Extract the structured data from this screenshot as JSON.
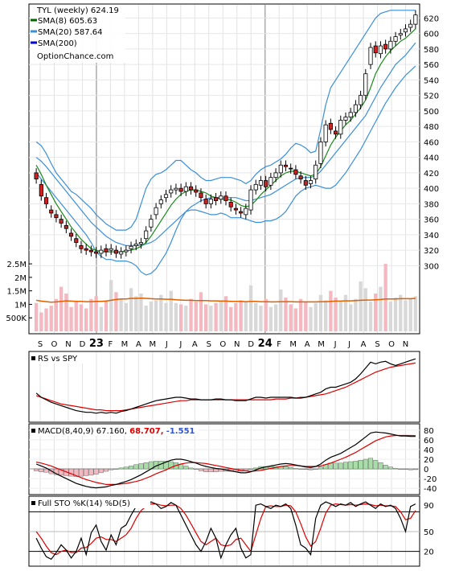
{
  "header": {
    "title": "TYL (weekly) 624.19",
    "legend": [
      {
        "label": "SMA(8) 605.63",
        "color": "#006400"
      },
      {
        "label": "SMA(20) 587.64",
        "color": "#3b8fd9"
      },
      {
        "label": "SMA(200)",
        "color": "#0000cc"
      }
    ],
    "source": "OptionChance.com"
  },
  "colors": {
    "up_candle": "#ffff66",
    "down_candle": "#cc2222",
    "bollinger": "#3b8fd9",
    "sma8": "#1a8a1a",
    "volume_up": "#d8d8d8",
    "volume_down": "#f4b8c0",
    "volume_avg": "#e06000",
    "rs_line": "#000000",
    "rs_avg": "#dd0000",
    "macd_hist_up": "#a8dca8",
    "macd_hist_down": "#f4b8c0"
  },
  "chart_data": {
    "type": "candlestick",
    "title": "TYL (weekly) 624.19",
    "x_ticks": [
      "S",
      "O",
      "N",
      "D",
      "23",
      "F",
      "M",
      "A",
      "M",
      "J",
      "J",
      "A",
      "S",
      "O",
      "N",
      "D",
      "24",
      "F",
      "M",
      "A",
      "M",
      "J",
      "J",
      "A",
      "S",
      "O",
      "N"
    ],
    "price": {
      "ylim": [
        290,
        635
      ],
      "yticks": [
        300,
        320,
        340,
        360,
        380,
        400,
        420,
        440,
        460,
        480,
        500,
        520,
        540,
        560,
        580,
        600,
        620
      ],
      "close": [
        412,
        390,
        380,
        368,
        362,
        355,
        348,
        338,
        330,
        322,
        320,
        318,
        316,
        320,
        318,
        322,
        316,
        318,
        320,
        325,
        328,
        330,
        345,
        360,
        375,
        385,
        392,
        398,
        400,
        396,
        402,
        398,
        395,
        388,
        380,
        386,
        384,
        390,
        384,
        376,
        372,
        368,
        374,
        398,
        405,
        410,
        402,
        414,
        420,
        430,
        428,
        425,
        418,
        412,
        404,
        410,
        430,
        460,
        482,
        476,
        470,
        488,
        492,
        498,
        508,
        520,
        548,
        582,
        575,
        584,
        580,
        590,
        596,
        600,
        606,
        612,
        624
      ],
      "open": [
        420,
        405,
        388,
        372,
        366,
        360,
        352,
        342,
        335,
        326,
        322,
        320,
        318,
        316,
        322,
        320,
        320,
        315,
        318,
        322,
        326,
        328,
        335,
        350,
        366,
        380,
        388,
        394,
        398,
        400,
        396,
        402,
        398,
        394,
        386,
        380,
        388,
        386,
        390,
        382,
        374,
        370,
        366,
        372,
        398,
        404,
        410,
        404,
        414,
        420,
        430,
        426,
        424,
        416,
        410,
        406,
        412,
        432,
        460,
        484,
        474,
        470,
        488,
        492,
        498,
        508,
        520,
        560,
        584,
        574,
        586,
        580,
        590,
        598,
        602,
        608,
        612
      ],
      "sma8": [
        430,
        418,
        404,
        392,
        380,
        370,
        360,
        350,
        342,
        334,
        328,
        322,
        320,
        318,
        318,
        318,
        318,
        318,
        319,
        320,
        322,
        325,
        330,
        338,
        348,
        358,
        368,
        378,
        386,
        392,
        396,
        398,
        398,
        396,
        394,
        390,
        388,
        386,
        386,
        385,
        382,
        378,
        376,
        378,
        384,
        392,
        398,
        404,
        410,
        416,
        420,
        422,
        422,
        420,
        418,
        416,
        418,
        428,
        442,
        456,
        466,
        474,
        482,
        488,
        496,
        504,
        514,
        530,
        548,
        560,
        570,
        578,
        584,
        590,
        594,
        600,
        606
      ],
      "sma20": [
        440,
        435,
        428,
        420,
        412,
        404,
        396,
        388,
        380,
        372,
        364,
        356,
        350,
        344,
        338,
        334,
        330,
        328,
        326,
        326,
        326,
        326,
        328,
        330,
        334,
        340,
        346,
        352,
        358,
        364,
        370,
        376,
        380,
        384,
        386,
        388,
        388,
        388,
        388,
        388,
        388,
        386,
        384,
        384,
        386,
        388,
        390,
        392,
        396,
        400,
        404,
        408,
        412,
        414,
        414,
        414,
        416,
        422,
        430,
        438,
        446,
        454,
        462,
        470,
        478,
        486,
        494,
        506,
        518,
        530,
        540,
        550,
        560,
        566,
        572,
        580,
        588
      ],
      "boll_upper": [
        460,
        455,
        445,
        432,
        420,
        412,
        404,
        396,
        392,
        386,
        380,
        374,
        366,
        360,
        354,
        350,
        346,
        346,
        346,
        350,
        360,
        380,
        400,
        412,
        418,
        420,
        424,
        430,
        436,
        436,
        430,
        424,
        420,
        414,
        410,
        410,
        412,
        414,
        414,
        414,
        412,
        410,
        406,
        410,
        418,
        424,
        428,
        430,
        434,
        438,
        444,
        452,
        458,
        456,
        452,
        446,
        448,
        476,
        508,
        530,
        540,
        550,
        560,
        570,
        580,
        590,
        600,
        610,
        620,
        626,
        628,
        630,
        630,
        630,
        630,
        630,
        630
      ],
      "boll_lower": [
        420,
        412,
        404,
        396,
        388,
        380,
        372,
        364,
        356,
        348,
        340,
        330,
        318,
        312,
        308,
        308,
        306,
        306,
        306,
        304,
        300,
        292,
        288,
        290,
        296,
        306,
        316,
        330,
        346,
        360,
        370,
        372,
        372,
        370,
        368,
        366,
        366,
        368,
        366,
        362,
        362,
        362,
        360,
        358,
        356,
        356,
        358,
        358,
        360,
        364,
        370,
        380,
        390,
        396,
        400,
        402,
        404,
        402,
        400,
        400,
        404,
        412,
        420,
        430,
        440,
        450,
        462,
        474,
        486,
        498,
        510,
        520,
        530,
        538,
        546,
        552,
        558
      ],
      "sma200_shown": false
    },
    "volume": {
      "ylabel_ticks": [
        "2.5M",
        "2M",
        "1.5M",
        "1M",
        "500K"
      ],
      "ytick_values": [
        2500000,
        2000000,
        1500000,
        1000000,
        500000
      ],
      "values": [
        1050000,
        700000,
        850000,
        950000,
        1200000,
        1650000,
        1400000,
        900000,
        1100000,
        1000000,
        850000,
        1200000,
        1300000,
        900000,
        1150000,
        1900000,
        1450000,
        1200000,
        1050000,
        1600000,
        1300000,
        1400000,
        950000,
        1100000,
        1150000,
        1350000,
        1050000,
        1500000,
        1050000,
        1000000,
        950000,
        1200000,
        1100000,
        1450000,
        1000000,
        950000,
        1050000,
        1150000,
        1300000,
        900000,
        1050000,
        1150000,
        1100000,
        1700000,
        1050000,
        950000,
        1200000,
        900000,
        1000000,
        1550000,
        1250000,
        1000000,
        850000,
        1200000,
        1100000,
        900000,
        1050000,
        1350000,
        1150000,
        1500000,
        1250000,
        1100000,
        1350000,
        1000000,
        1200000,
        1850000,
        1600000,
        1100000,
        1400000,
        1650000,
        2500000,
        1100000,
        1250000,
        1350000,
        1150000,
        1200000,
        1300000
      ],
      "avg": [
        1150000,
        1120000,
        1100000,
        1080000,
        1090000,
        1110000,
        1130000,
        1120000,
        1110000,
        1110000,
        1100000,
        1100000,
        1110000,
        1110000,
        1120000,
        1150000,
        1180000,
        1200000,
        1200000,
        1220000,
        1220000,
        1230000,
        1220000,
        1210000,
        1200000,
        1200000,
        1190000,
        1190000,
        1170000,
        1160000,
        1150000,
        1150000,
        1140000,
        1140000,
        1140000,
        1130000,
        1130000,
        1120000,
        1120000,
        1110000,
        1110000,
        1110000,
        1100000,
        1110000,
        1110000,
        1100000,
        1100000,
        1090000,
        1090000,
        1100000,
        1100000,
        1100000,
        1090000,
        1090000,
        1090000,
        1090000,
        1090000,
        1100000,
        1100000,
        1110000,
        1120000,
        1120000,
        1130000,
        1130000,
        1140000,
        1150000,
        1160000,
        1160000,
        1170000,
        1180000,
        1200000,
        1200000,
        1200000,
        1210000,
        1210000,
        1210000,
        1220000
      ]
    },
    "rs": {
      "label": "RS vs SPY",
      "values": [
        0.55,
        0.5,
        0.47,
        0.44,
        0.42,
        0.4,
        0.38,
        0.36,
        0.34,
        0.33,
        0.32,
        0.32,
        0.31,
        0.32,
        0.31,
        0.32,
        0.31,
        0.33,
        0.34,
        0.36,
        0.38,
        0.4,
        0.42,
        0.44,
        0.46,
        0.47,
        0.48,
        0.49,
        0.5,
        0.5,
        0.49,
        0.48,
        0.48,
        0.47,
        0.47,
        0.47,
        0.48,
        0.48,
        0.47,
        0.47,
        0.46,
        0.46,
        0.46,
        0.48,
        0.5,
        0.5,
        0.49,
        0.5,
        0.5,
        0.5,
        0.5,
        0.5,
        0.49,
        0.49,
        0.5,
        0.52,
        0.54,
        0.56,
        0.6,
        0.62,
        0.62,
        0.64,
        0.66,
        0.68,
        0.72,
        0.78,
        0.85,
        0.92,
        0.9,
        0.92,
        0.93,
        0.9,
        0.88,
        0.9,
        0.92,
        0.94,
        0.96
      ],
      "avg": [
        0.52,
        0.5,
        0.48,
        0.46,
        0.44,
        0.42,
        0.41,
        0.4,
        0.39,
        0.38,
        0.37,
        0.36,
        0.35,
        0.35,
        0.34,
        0.34,
        0.34,
        0.34,
        0.35,
        0.36,
        0.37,
        0.38,
        0.39,
        0.4,
        0.41,
        0.42,
        0.43,
        0.44,
        0.45,
        0.46,
        0.46,
        0.47,
        0.47,
        0.47,
        0.47,
        0.47,
        0.47,
        0.47,
        0.47,
        0.47,
        0.47,
        0.47,
        0.47,
        0.47,
        0.47,
        0.47,
        0.47,
        0.47,
        0.48,
        0.48,
        0.48,
        0.49,
        0.49,
        0.5,
        0.5,
        0.51,
        0.52,
        0.53,
        0.54,
        0.56,
        0.58,
        0.6,
        0.62,
        0.65,
        0.68,
        0.71,
        0.74,
        0.77,
        0.8,
        0.82,
        0.84,
        0.86,
        0.87,
        0.88,
        0.89,
        0.9,
        0.91
      ]
    },
    "macd": {
      "label_prefix": "MACD(8,40,9) 67.160,",
      "label_signal": "68.707,",
      "label_hist": "-1.551",
      "ylim": [
        -48,
        88
      ],
      "yticks": [
        80,
        60,
        40,
        20,
        0,
        -20,
        -40
      ],
      "macd": [
        10,
        6,
        2,
        -4,
        -10,
        -15,
        -20,
        -25,
        -30,
        -33,
        -36,
        -38,
        -39,
        -38,
        -37,
        -34,
        -32,
        -29,
        -26,
        -22,
        -17,
        -12,
        -6,
        0,
        6,
        10,
        14,
        18,
        20,
        20,
        18,
        15,
        12,
        8,
        5,
        3,
        1,
        0,
        -2,
        -4,
        -6,
        -8,
        -8,
        -6,
        -2,
        2,
        4,
        6,
        8,
        10,
        11,
        10,
        8,
        6,
        4,
        3,
        5,
        10,
        18,
        24,
        28,
        32,
        38,
        44,
        50,
        58,
        66,
        74,
        76,
        75,
        74,
        72,
        70,
        68,
        68,
        67,
        67
      ],
      "signal": [
        14,
        12,
        9,
        6,
        2,
        -2,
        -6,
        -10,
        -14,
        -18,
        -22,
        -25,
        -28,
        -30,
        -32,
        -32,
        -32,
        -31,
        -30,
        -28,
        -26,
        -23,
        -19,
        -15,
        -10,
        -6,
        -2,
        3,
        7,
        10,
        12,
        13,
        13,
        12,
        11,
        9,
        7,
        5,
        3,
        1,
        -1,
        -3,
        -4,
        -5,
        -4,
        -3,
        -1,
        1,
        3,
        5,
        6,
        7,
        7,
        6,
        5,
        5,
        5,
        6,
        9,
        12,
        16,
        20,
        24,
        29,
        34,
        40,
        46,
        52,
        58,
        62,
        66,
        68,
        69,
        69,
        69,
        69,
        68.7
      ],
      "hist": [
        -4,
        -6,
        -7,
        -10,
        -12,
        -13,
        -14,
        -15,
        -16,
        -15,
        -14,
        -13,
        -11,
        -8,
        -5,
        -2,
        0,
        2,
        4,
        6,
        9,
        11,
        13,
        15,
        16,
        16,
        16,
        15,
        13,
        10,
        6,
        2,
        -1,
        -4,
        -6,
        -6,
        -6,
        -5,
        -5,
        -5,
        -5,
        -5,
        -4,
        -1,
        2,
        5,
        5,
        5,
        5,
        5,
        5,
        3,
        1,
        0,
        -1,
        -2,
        0,
        4,
        9,
        12,
        12,
        12,
        14,
        15,
        16,
        18,
        20,
        22,
        18,
        13,
        8,
        4,
        1,
        -1,
        -1,
        -2,
        -1.5
      ]
    },
    "stochastic": {
      "label": "Full STO %K(14) %D(5)",
      "ylim": [
        0,
        100
      ],
      "yticks": [
        90,
        50,
        20
      ],
      "levels": [
        80,
        20
      ],
      "k": [
        40,
        25,
        12,
        8,
        18,
        30,
        22,
        10,
        20,
        40,
        15,
        48,
        60,
        35,
        22,
        45,
        30,
        55,
        60,
        75,
        88,
        92,
        90,
        95,
        92,
        85,
        88,
        94,
        90,
        75,
        60,
        45,
        30,
        20,
        35,
        55,
        40,
        10,
        30,
        45,
        55,
        25,
        10,
        15,
        90,
        92,
        88,
        85,
        90,
        88,
        92,
        85,
        60,
        30,
        25,
        15,
        70,
        90,
        95,
        92,
        88,
        92,
        90,
        94,
        88,
        92,
        95,
        90,
        85,
        92,
        88,
        90,
        85,
        70,
        50,
        88,
        92
      ],
      "d": [
        50,
        40,
        28,
        18,
        15,
        20,
        22,
        18,
        18,
        25,
        26,
        32,
        40,
        42,
        38,
        38,
        35,
        40,
        45,
        55,
        70,
        82,
        88,
        92,
        92,
        90,
        89,
        90,
        90,
        85,
        75,
        62,
        48,
        35,
        30,
        35,
        40,
        30,
        28,
        30,
        38,
        40,
        30,
        20,
        45,
        70,
        88,
        89,
        88,
        88,
        90,
        89,
        80,
        62,
        42,
        28,
        35,
        55,
        78,
        90,
        92,
        91,
        90,
        91,
        90,
        91,
        92,
        91,
        89,
        90,
        89,
        89,
        88,
        80,
        68,
        70,
        82
      ]
    }
  }
}
